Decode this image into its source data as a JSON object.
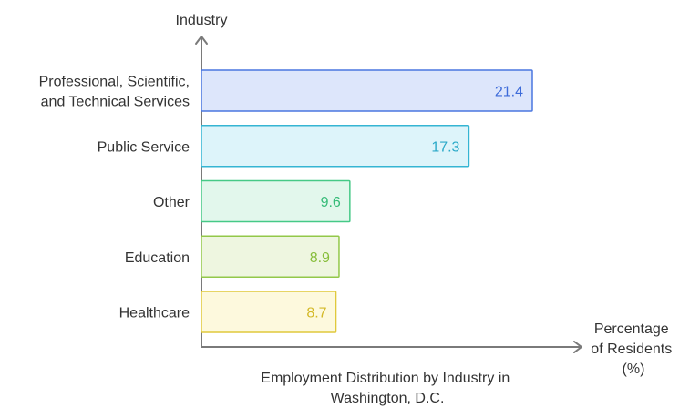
{
  "chart_data": {
    "type": "bar",
    "orientation": "horizontal",
    "title": "Employment Distribution by Industry in Washington, D.C.",
    "title_lines": [
      "Employment Distribution by Industry in",
      "Washington, D.C."
    ],
    "ylabel": "Industry",
    "xlabel": "Percentage of Residents (%)",
    "xlabel_lines": [
      "Percentage",
      "of Residents",
      "(%)"
    ],
    "categories": [
      "Professional, Scientific, and Technical Services",
      "Public Service",
      "Other",
      "Education",
      "Healthcare"
    ],
    "category_lines": [
      [
        "Professional, Scientific,",
        "and Technical Services"
      ],
      [
        "Public Service"
      ],
      [
        "Other"
      ],
      [
        "Education"
      ],
      [
        "Healthcare"
      ]
    ],
    "values": [
      21.4,
      17.3,
      9.6,
      8.9,
      8.7
    ],
    "value_labels": [
      "21.4",
      "17.3",
      "9.6",
      "8.9",
      "8.7"
    ],
    "colors": [
      {
        "fill": "#dde6fb",
        "stroke": "#4a77e0",
        "text": "#3d6bd9"
      },
      {
        "fill": "#ddf4fa",
        "stroke": "#35b5d3",
        "text": "#2aa9c8"
      },
      {
        "fill": "#e2f7ec",
        "stroke": "#46c987",
        "text": "#36bb78"
      },
      {
        "fill": "#eef6e0",
        "stroke": "#93c84a",
        "text": "#86bd3a"
      },
      {
        "fill": "#fdf9dd",
        "stroke": "#e0c93c",
        "text": "#d4b928"
      }
    ],
    "axis_color": "#7a7a7a",
    "grid": false
  }
}
